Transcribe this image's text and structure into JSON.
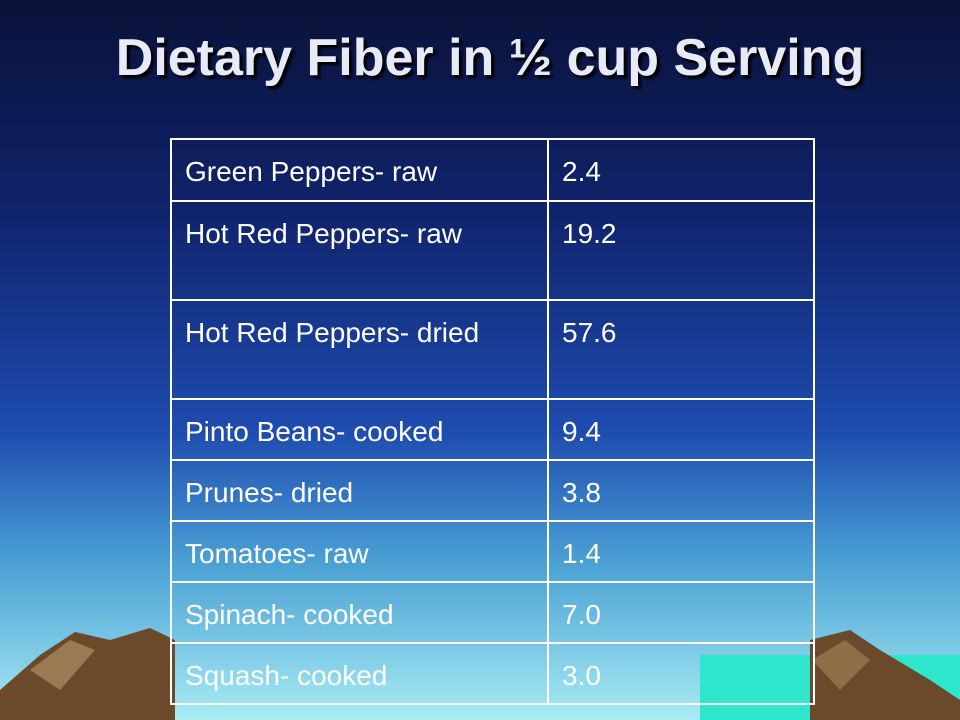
{
  "title": "Dietary Fiber in ½ cup Serving",
  "table": {
    "rows": [
      [
        "Green Peppers- raw",
        "2.4"
      ],
      [
        "Hot Red Peppers- raw",
        "19.2"
      ],
      [
        "Hot Red Peppers- dried",
        "57.6"
      ],
      [
        "Pinto Beans- cooked",
        "9.4"
      ],
      [
        "Prunes- dried",
        "3.8"
      ],
      [
        "Tomatoes- raw",
        "1.4"
      ],
      [
        "Spinach- cooked",
        "7.0"
      ],
      [
        "Squash- cooked",
        "3.0"
      ]
    ]
  }
}
